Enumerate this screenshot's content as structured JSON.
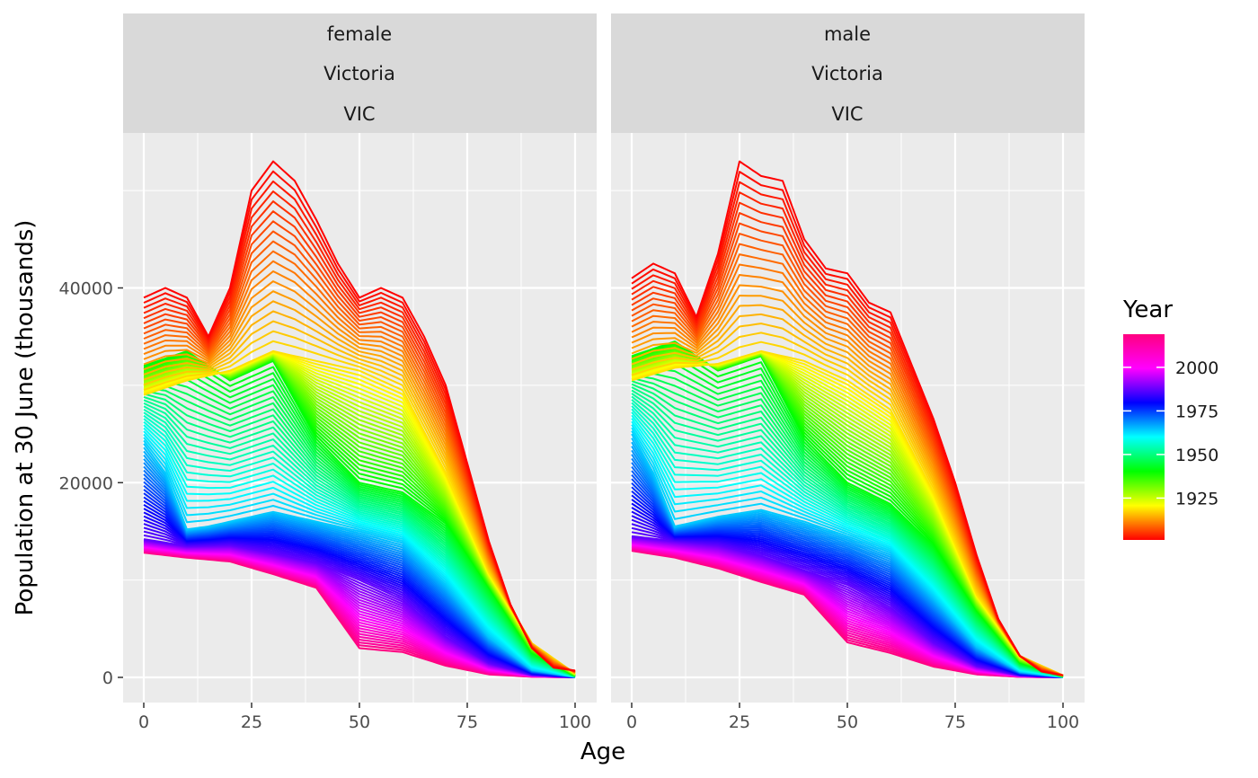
{
  "chart_data": {
    "type": "line",
    "xlabel": "Age",
    "ylabel": "Population at 30 June (thousands)",
    "x_range": [
      0,
      100
    ],
    "y_range": [
      0,
      53000
    ],
    "x_ticks": [
      0,
      25,
      50,
      75,
      100
    ],
    "y_ticks": [
      0,
      20000,
      40000
    ],
    "grid": true,
    "color_scale": {
      "title": "Year",
      "type": "rainbow",
      "range": [
        1901,
        2019
      ],
      "ticks": [
        1925,
        1950,
        1975,
        2000
      ]
    },
    "legend_position": "right",
    "series_note_years": "one line per year, 1901 to 2019",
    "panels": [
      {
        "strip": [
          "female",
          "Victoria",
          "VIC"
        ],
        "key_curves": [
          {
            "year": 1901,
            "points": [
              [
                0,
                12800
              ],
              [
                10,
                12300
              ],
              [
                20,
                11900
              ],
              [
                30,
                10600
              ],
              [
                40,
                9200
              ],
              [
                50,
                3000
              ],
              [
                60,
                2600
              ],
              [
                70,
                1200
              ],
              [
                80,
                300
              ],
              [
                90,
                60
              ],
              [
                100,
                0
              ]
            ]
          },
          {
            "year": 1925,
            "points": [
              [
                0,
                14200
              ],
              [
                10,
                13500
              ],
              [
                20,
                13600
              ],
              [
                30,
                12800
              ],
              [
                40,
                11800
              ],
              [
                50,
                10000
              ],
              [
                60,
                8000
              ],
              [
                70,
                4200
              ],
              [
                80,
                1500
              ],
              [
                90,
                250
              ],
              [
                100,
                0
              ]
            ]
          },
          {
            "year": 1950,
            "points": [
              [
                0,
                24000
              ],
              [
                5,
                21000
              ],
              [
                10,
                15200
              ],
              [
                15,
                15500
              ],
              [
                20,
                16000
              ],
              [
                30,
                17000
              ],
              [
                40,
                16000
              ],
              [
                50,
                15000
              ],
              [
                60,
                13800
              ],
              [
                70,
                9500
              ],
              [
                80,
                4200
              ],
              [
                90,
                800
              ],
              [
                100,
                50
              ]
            ]
          },
          {
            "year": 1975,
            "points": [
              [
                0,
                32000
              ],
              [
                10,
                33500
              ],
              [
                20,
                30500
              ],
              [
                30,
                32500
              ],
              [
                40,
                24500
              ],
              [
                50,
                20000
              ],
              [
                60,
                19000
              ],
              [
                70,
                15800
              ],
              [
                80,
                9200
              ],
              [
                90,
                2500
              ],
              [
                100,
                150
              ]
            ]
          },
          {
            "year": 2000,
            "points": [
              [
                0,
                29000
              ],
              [
                10,
                30500
              ],
              [
                20,
                31500
              ],
              [
                30,
                33500
              ],
              [
                40,
                32500
              ],
              [
                50,
                31500
              ],
              [
                60,
                29500
              ],
              [
                70,
                21000
              ],
              [
                80,
                10800
              ],
              [
                90,
                3500
              ],
              [
                100,
                400
              ]
            ]
          },
          {
            "year": 2019,
            "points": [
              [
                0,
                39000
              ],
              [
                5,
                40000
              ],
              [
                10,
                39000
              ],
              [
                15,
                35000
              ],
              [
                20,
                40000
              ],
              [
                25,
                50000
              ],
              [
                30,
                53000
              ],
              [
                35,
                51000
              ],
              [
                40,
                47000
              ],
              [
                45,
                42500
              ],
              [
                50,
                39000
              ],
              [
                55,
                40000
              ],
              [
                60,
                39000
              ],
              [
                65,
                35000
              ],
              [
                70,
                30000
              ],
              [
                75,
                22000
              ],
              [
                80,
                14000
              ],
              [
                85,
                7500
              ],
              [
                90,
                3000
              ],
              [
                95,
                1000
              ],
              [
                100,
                700
              ]
            ]
          }
        ]
      },
      {
        "strip": [
          "male",
          "Victoria",
          "VIC"
        ],
        "key_curves": [
          {
            "year": 1901,
            "points": [
              [
                0,
                13000
              ],
              [
                10,
                12300
              ],
              [
                20,
                11200
              ],
              [
                30,
                9800
              ],
              [
                40,
                8500
              ],
              [
                50,
                3600
              ],
              [
                60,
                2500
              ],
              [
                70,
                1100
              ],
              [
                80,
                300
              ],
              [
                90,
                50
              ],
              [
                100,
                0
              ]
            ]
          },
          {
            "year": 1925,
            "points": [
              [
                0,
                14500
              ],
              [
                10,
                14000
              ],
              [
                20,
                13600
              ],
              [
                30,
                12500
              ],
              [
                40,
                11000
              ],
              [
                50,
                9500
              ],
              [
                60,
                7200
              ],
              [
                70,
                3600
              ],
              [
                80,
                1200
              ],
              [
                90,
                200
              ],
              [
                100,
                0
              ]
            ]
          },
          {
            "year": 1950,
            "points": [
              [
                0,
                25000
              ],
              [
                5,
                21000
              ],
              [
                10,
                15500
              ],
              [
                15,
                16000
              ],
              [
                20,
                16500
              ],
              [
                30,
                17200
              ],
              [
                40,
                16000
              ],
              [
                50,
                14500
              ],
              [
                60,
                12800
              ],
              [
                70,
                8200
              ],
              [
                80,
                3200
              ],
              [
                90,
                600
              ],
              [
                100,
                30
              ]
            ]
          },
          {
            "year": 1975,
            "points": [
              [
                0,
                33000
              ],
              [
                10,
                34500
              ],
              [
                20,
                31500
              ],
              [
                30,
                33000
              ],
              [
                40,
                24500
              ],
              [
                50,
                20000
              ],
              [
                60,
                17800
              ],
              [
                70,
                13500
              ],
              [
                80,
                6800
              ],
              [
                90,
                1500
              ],
              [
                100,
                100
              ]
            ]
          },
          {
            "year": 2000,
            "points": [
              [
                0,
                30500
              ],
              [
                10,
                31800
              ],
              [
                20,
                32200
              ],
              [
                30,
                33500
              ],
              [
                40,
                32500
              ],
              [
                50,
                30500
              ],
              [
                60,
                27500
              ],
              [
                70,
                19000
              ],
              [
                80,
                8500
              ],
              [
                90,
                2200
              ],
              [
                100,
                200
              ]
            ]
          },
          {
            "year": 2019,
            "points": [
              [
                0,
                41000
              ],
              [
                5,
                42500
              ],
              [
                10,
                41500
              ],
              [
                15,
                37000
              ],
              [
                20,
                43500
              ],
              [
                25,
                53000
              ],
              [
                30,
                51500
              ],
              [
                35,
                51000
              ],
              [
                40,
                45000
              ],
              [
                45,
                42000
              ],
              [
                50,
                41500
              ],
              [
                55,
                38500
              ],
              [
                60,
                37500
              ],
              [
                65,
                32000
              ],
              [
                70,
                26500
              ],
              [
                75,
                20000
              ],
              [
                80,
                12500
              ],
              [
                85,
                6000
              ],
              [
                90,
                2200
              ],
              [
                95,
                600
              ],
              [
                100,
                200
              ]
            ]
          }
        ]
      }
    ]
  }
}
